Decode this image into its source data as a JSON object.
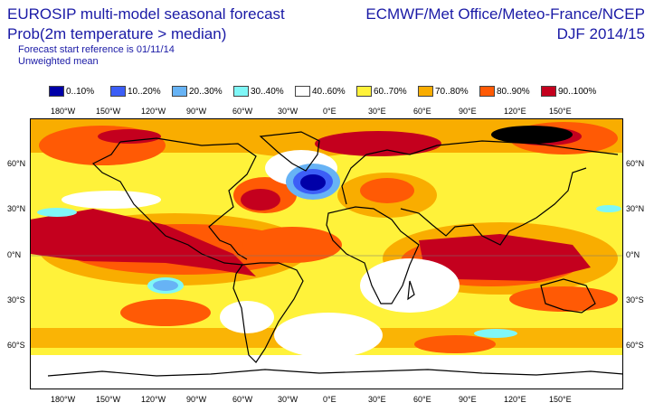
{
  "header": {
    "title": "EUROSIP multi-model seasonal forecast",
    "variable": "Prob(2m temperature > median)",
    "start_ref": "Forecast start reference is 01/11/14",
    "mean_type": "Unweighted mean",
    "centres": "ECMWF/Met Office/Meteo-France/NCEP",
    "season": "DJF 2014/15"
  },
  "legend": [
    {
      "label": "0..10%",
      "color": "#0000a8"
    },
    {
      "label": "10..20%",
      "color": "#3c5ef7"
    },
    {
      "label": "20..30%",
      "color": "#67b3f5"
    },
    {
      "label": "30..40%",
      "color": "#7ff7f7"
    },
    {
      "label": "40..60%",
      "color": "#ffffff"
    },
    {
      "label": "60..70%",
      "color": "#fff23a"
    },
    {
      "label": "70..80%",
      "color": "#f9ad00"
    },
    {
      "label": "80..90%",
      "color": "#ff5a05"
    },
    {
      "label": "90..100%",
      "color": "#c4001e"
    }
  ],
  "axes": {
    "lon_labels": [
      "180°W",
      "150°W",
      "120°W",
      "90°W",
      "60°W",
      "30°W",
      "0°E",
      "30°E",
      "60°E",
      "90°E",
      "120°E",
      "150°E"
    ],
    "lat_labels": [
      "60°N",
      "30°N",
      "0°N",
      "30°S",
      "60°S"
    ]
  },
  "colors": {
    "text": "#1a1aa6",
    "coastline": "#000000"
  }
}
